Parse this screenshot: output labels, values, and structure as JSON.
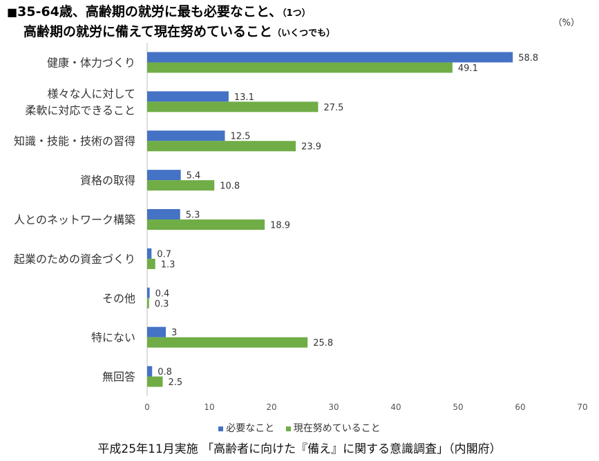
{
  "title": {
    "mark": "■",
    "line1_main": "35-64歳、高齢期の就労に最も必要なこと、",
    "line1_note": "（1つ）",
    "line2_main": "高齢期の就労に備えて現在努めていること",
    "line2_note": "（いくつでも）"
  },
  "unit_label": "（%）",
  "source": "平成25年11月実施 「高齢者に向けた『備え』に関する意識調査」（内閣府）",
  "colors": {
    "series1": "#4472C4",
    "series2": "#70AD47",
    "axis": "#BFBFBF"
  },
  "chart_data": {
    "type": "bar",
    "orientation": "horizontal",
    "categories": [
      [
        "健康・体力づくり"
      ],
      [
        "様々な人に対して",
        "柔軟に対応できること"
      ],
      [
        "知識・技能・技術の習得"
      ],
      [
        "資格の取得"
      ],
      [
        "人とのネットワーク構築"
      ],
      [
        "起業のための資金づくり"
      ],
      [
        "その他"
      ],
      [
        "特にない"
      ],
      [
        "無回答"
      ]
    ],
    "series": [
      {
        "name": "必要なこと",
        "values": [
          58.8,
          13.1,
          12.5,
          5.4,
          5.3,
          0.7,
          0.4,
          3,
          0.8
        ]
      },
      {
        "name": "現在努めていること",
        "values": [
          49.1,
          27.5,
          23.9,
          10.8,
          18.9,
          1.3,
          0.3,
          25.8,
          2.5
        ]
      }
    ],
    "xlim": [
      0,
      70
    ],
    "xticks": [
      0,
      10,
      20,
      30,
      40,
      50,
      60,
      70
    ],
    "grid": false,
    "legend_position": "bottom"
  }
}
